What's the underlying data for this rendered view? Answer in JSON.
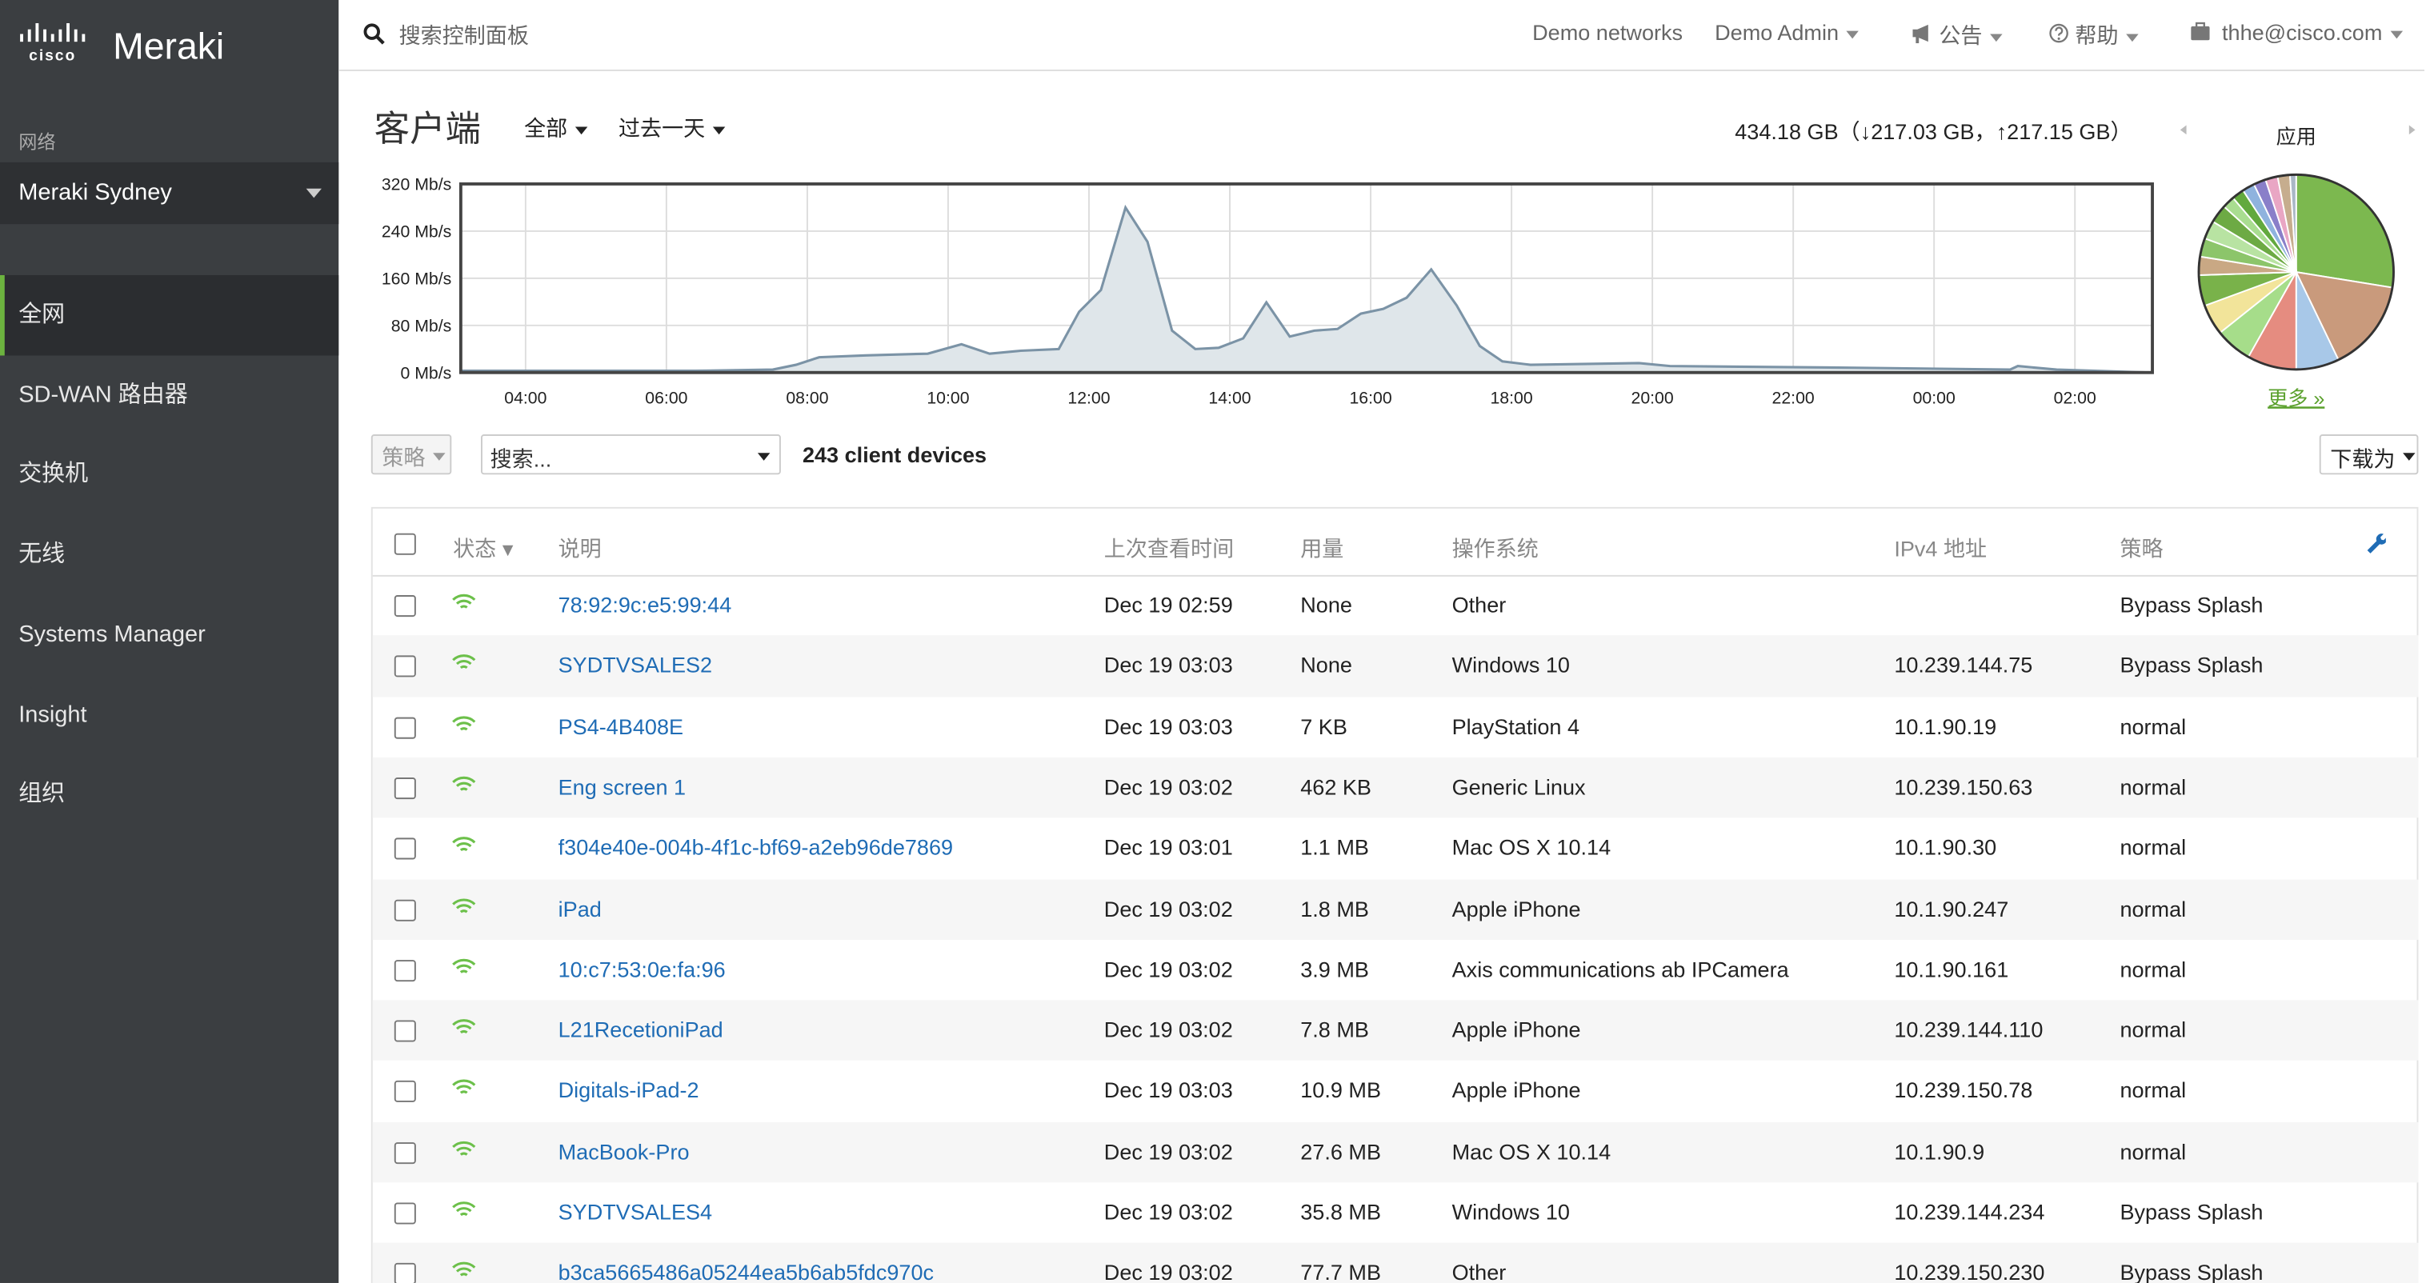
{
  "sidebar": {
    "brand": "Meraki",
    "network_label": "网络",
    "network": "Meraki Sydney",
    "nav": [
      "全网",
      "SD-WAN 路由器",
      "交换机",
      "无线",
      "Systems Manager",
      "Insight",
      "组织"
    ]
  },
  "topbar": {
    "search": "搜索控制面板",
    "networks": "Demo networks",
    "admin": "Demo Admin",
    "announce": "公告",
    "help": "帮助",
    "email": "thhe@cisco.com"
  },
  "header": {
    "title": "客户端",
    "filter": "全部",
    "range": "过去一天",
    "total": "434.18 GB（↓217.03 GB，↑217.15 GB）"
  },
  "chart_data": [
    {
      "type": "area",
      "x": [
        3.08,
        6.41,
        7.51,
        7.84,
        8.17,
        8.83,
        9.71,
        10.19,
        10.59,
        11.03,
        11.57,
        11.86,
        12.17,
        12.52,
        12.83,
        13.18,
        13.51,
        13.84,
        14.19,
        14.52,
        14.85,
        15.2,
        15.53,
        15.86,
        16.18,
        16.51,
        16.86,
        17.22,
        17.55,
        17.87,
        18.27,
        19.81,
        20.25,
        22.88,
        25.08,
        25.19,
        25.74,
        27.06
      ],
      "values": [
        3,
        3,
        5,
        13,
        26,
        29,
        32,
        48,
        32,
        37,
        40,
        103,
        140,
        280,
        222,
        71,
        40,
        42,
        58,
        119,
        61,
        71,
        74,
        100,
        108,
        127,
        175,
        114,
        45,
        19,
        13,
        16,
        11,
        8,
        5,
        11,
        5,
        0
      ],
      "color": "#7b93a6",
      "fill": "#dfe6ea",
      "xlim": [
        3.08,
        27.1
      ],
      "xticks": [
        {
          "value": 4,
          "label": "04:00"
        },
        {
          "value": 6,
          "label": "06:00"
        },
        {
          "value": 8,
          "label": "08:00"
        },
        {
          "value": 10,
          "label": "10:00"
        },
        {
          "value": 12,
          "label": "12:00"
        },
        {
          "value": 14,
          "label": "14:00"
        },
        {
          "value": 16,
          "label": "16:00"
        },
        {
          "value": 18,
          "label": "18:00"
        },
        {
          "value": 20,
          "label": "20:00"
        },
        {
          "value": 22,
          "label": "22:00"
        },
        {
          "value": 24,
          "label": "00:00"
        },
        {
          "value": 26,
          "label": "02:00"
        }
      ],
      "ylim": [
        0,
        320
      ],
      "yticks": [
        {
          "value": 0,
          "label": "0 Mb/s"
        },
        {
          "value": 80,
          "label": "80 Mb/s"
        },
        {
          "value": 160,
          "label": "160 Mb/s"
        },
        {
          "value": 240,
          "label": "240 Mb/s"
        },
        {
          "value": 320,
          "label": "320 Mb/s"
        }
      ],
      "grid": true
    },
    {
      "type": "pie",
      "title": "应用",
      "link": "更多 »",
      "values": [
        27,
        15,
        7,
        8,
        6,
        5,
        5,
        3,
        3,
        3,
        3,
        2,
        2,
        2,
        2,
        2,
        2,
        1
      ],
      "colors": [
        "#7cb84f",
        "#c99a7c",
        "#a8c8e8",
        "#e58c80",
        "#a6dd8a",
        "#f2e49a",
        "#79b24a",
        "#c9a884",
        "#8cc56a",
        "#b8e3a2",
        "#6daa44",
        "#a9dd90",
        "#62a93e",
        "#8fb3de",
        "#8a7fc9",
        "#e9a6c4",
        "#c6ad8e",
        "#a9b7c6"
      ]
    }
  ],
  "toolbar": {
    "policy": "策略",
    "search": "搜索...",
    "count": "243 client devices",
    "download": "下载为"
  },
  "table": {
    "columns": [
      "状态 ▾",
      "说明",
      "上次查看时间",
      "用量",
      "操作系统",
      "IPv4 地址",
      "策略"
    ],
    "rows": [
      [
        "78:92:9c:e5:99:44",
        "Dec 19 02:59",
        "None",
        "Other",
        null,
        "Bypass Splash"
      ],
      [
        "SYDTVSALES2",
        "Dec 19 03:03",
        "None",
        "Windows 10",
        "10.239.144.75",
        "Bypass Splash"
      ],
      [
        "PS4-4B408E",
        "Dec 19 03:03",
        "7 KB",
        "PlayStation 4",
        "10.1.90.19",
        "normal"
      ],
      [
        "Eng screen 1",
        "Dec 19 03:02",
        "462 KB",
        "Generic Linux",
        "10.239.150.63",
        "normal"
      ],
      [
        "f304e40e-004b-4f1c-bf69-a2eb96de7869",
        "Dec 19 03:01",
        "1.1 MB",
        "Mac OS X 10.14",
        "10.1.90.30",
        "normal"
      ],
      [
        "iPad",
        "Dec 19 03:02",
        "1.8 MB",
        "Apple iPhone",
        "10.1.90.247",
        "normal"
      ],
      [
        "10:c7:53:0e:fa:96",
        "Dec 19 03:02",
        "3.9 MB",
        "Axis communications ab IPCamera",
        "10.1.90.161",
        "normal"
      ],
      [
        "L21RecetioniPad",
        "Dec 19 03:02",
        "7.8 MB",
        "Apple iPhone",
        "10.239.144.110",
        "normal"
      ],
      [
        "Digitals-iPad-2",
        "Dec 19 03:03",
        "10.9 MB",
        "Apple iPhone",
        "10.239.150.78",
        "normal"
      ],
      [
        "MacBook-Pro",
        "Dec 19 03:02",
        "27.6 MB",
        "Mac OS X 10.14",
        "10.1.90.9",
        "normal"
      ],
      [
        "SYDTVSALES4",
        "Dec 19 03:02",
        "35.8 MB",
        "Windows 10",
        "10.239.144.234",
        "Bypass Splash"
      ],
      [
        "b3ca5665486a05244ea5b6ab5fdc970c",
        "Dec 19 03:02",
        "77.7 MB",
        "Other",
        "10.239.150.230",
        "Bypass Splash"
      ]
    ]
  }
}
